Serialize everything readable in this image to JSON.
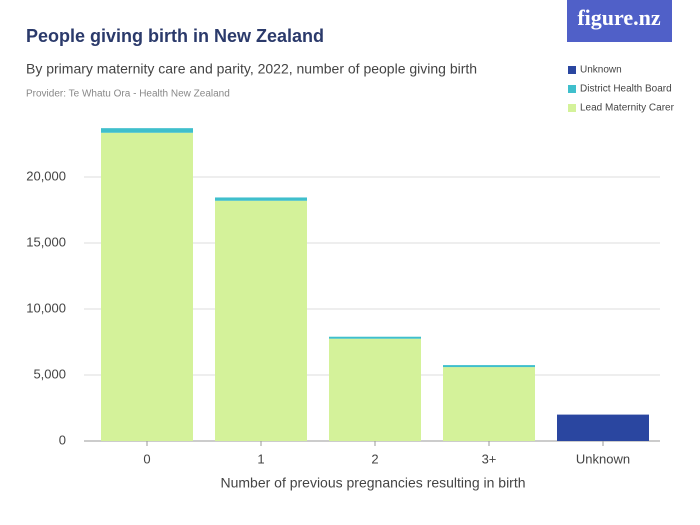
{
  "chart_data": {
    "type": "stacked_bar",
    "logo": "figure.nz",
    "title": "People giving birth in New Zealand",
    "subtitle": "By primary maternity care and parity, 2022, number of people giving birth",
    "provider": "Provider: Te Whatu Ora - Health New Zealand",
    "x_label": "Number of previous pregnancies resulting in birth",
    "categories": [
      "0",
      "1",
      "2",
      "3+",
      "Unknown"
    ],
    "series": [
      {
        "name": "Lead Maternity Carer",
        "color": "#d4f29a",
        "values": [
          23350,
          18200,
          7750,
          5600,
          0
        ]
      },
      {
        "name": "District Health Board",
        "color": "#3fbfcc",
        "values": [
          350,
          250,
          150,
          150,
          0
        ]
      },
      {
        "name": "Unknown",
        "color": "#2a46a0",
        "values": [
          0,
          0,
          0,
          0,
          2000
        ]
      }
    ],
    "ylim": [
      0,
      25000
    ],
    "yticks": [
      0,
      {
        "value": 5000,
        "label": "5,000"
      },
      {
        "value": 10000,
        "label": "10,000"
      },
      {
        "value": 15000,
        "label": "15,000"
      },
      {
        "value": 20000,
        "label": "20,000"
      }
    ],
    "grid": true
  }
}
